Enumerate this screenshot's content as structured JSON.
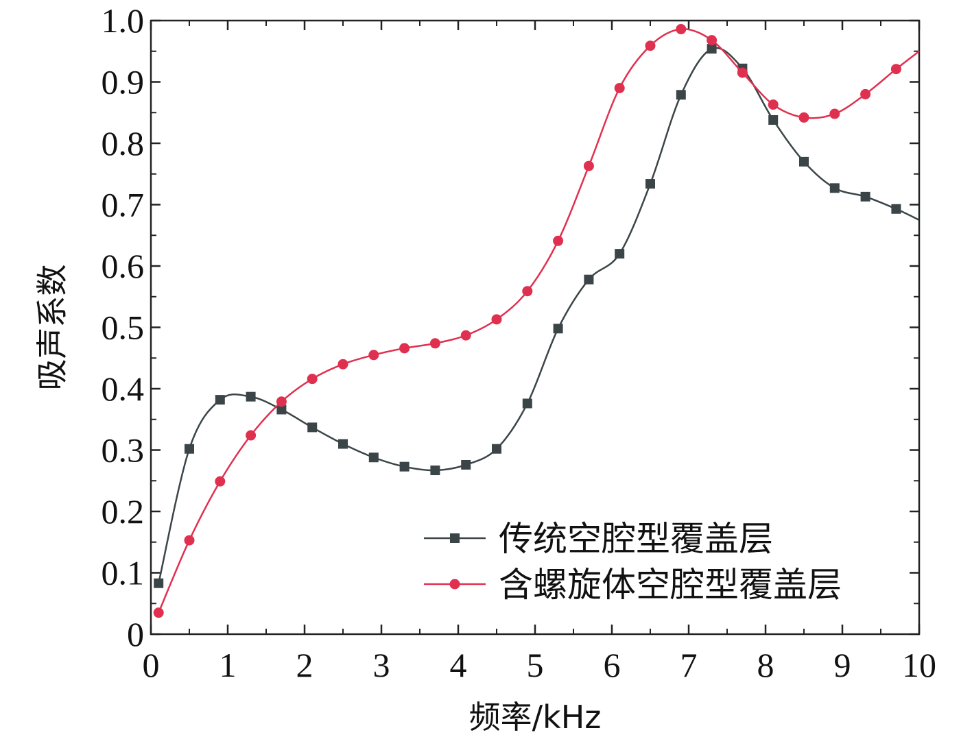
{
  "chart_data": {
    "type": "line",
    "title": "",
    "xlabel": "频率/kHz",
    "ylabel": "吸声系数",
    "xlim": [
      0,
      10
    ],
    "ylim": [
      0,
      1.0
    ],
    "x_ticks": [
      0,
      1,
      2,
      3,
      4,
      5,
      6,
      7,
      8,
      9,
      10
    ],
    "x_tick_labels": [
      "0",
      "1",
      "2",
      "3",
      "4",
      "5",
      "6",
      "7",
      "8",
      "9",
      "10"
    ],
    "y_ticks": [
      0,
      0.1,
      0.2,
      0.3,
      0.4,
      0.5,
      0.6,
      0.7,
      0.8,
      0.9,
      1.0
    ],
    "y_tick_labels": [
      "0",
      "0.1",
      "0.2",
      "0.3",
      "0.4",
      "0.5",
      "0.6",
      "0.7",
      "0.8",
      "0.9",
      "1.0"
    ],
    "grid": false,
    "legend_position": "bottom-right",
    "series": [
      {
        "name": "传统空腔型覆盖层",
        "color": "#3b4548",
        "marker": "square",
        "x": [
          0.1,
          0.5,
          0.9,
          1.3,
          1.7,
          2.1,
          2.5,
          2.9,
          3.3,
          3.7,
          4.1,
          4.5,
          4.9,
          5.3,
          5.7,
          6.1,
          6.5,
          6.9,
          7.3,
          7.7,
          8.1,
          8.5,
          8.9,
          9.3,
          9.7,
          10.0
        ],
        "values": [
          0.083,
          0.302,
          0.382,
          0.387,
          0.366,
          0.337,
          0.31,
          0.288,
          0.273,
          0.267,
          0.276,
          0.302,
          0.376,
          0.498,
          0.578,
          0.62,
          0.734,
          0.879,
          0.954,
          0.922,
          0.838,
          0.77,
          0.727,
          0.713,
          0.693,
          0.675
        ],
        "marker_points": 25
      },
      {
        "name": "含螺旋体空腔型覆盖层",
        "color": "#e0304f",
        "marker": "circle",
        "x": [
          0.1,
          0.5,
          0.9,
          1.3,
          1.7,
          2.1,
          2.5,
          2.9,
          3.3,
          3.7,
          4.1,
          4.5,
          4.9,
          5.3,
          5.7,
          6.1,
          6.5,
          6.9,
          7.3,
          7.7,
          8.1,
          8.5,
          8.9,
          9.3,
          9.7,
          10.0
        ],
        "values": [
          0.035,
          0.153,
          0.249,
          0.324,
          0.379,
          0.416,
          0.44,
          0.455,
          0.466,
          0.474,
          0.487,
          0.513,
          0.559,
          0.641,
          0.763,
          0.89,
          0.959,
          0.986,
          0.968,
          0.915,
          0.863,
          0.842,
          0.848,
          0.88,
          0.921,
          0.95
        ],
        "marker_points": 25
      }
    ]
  }
}
